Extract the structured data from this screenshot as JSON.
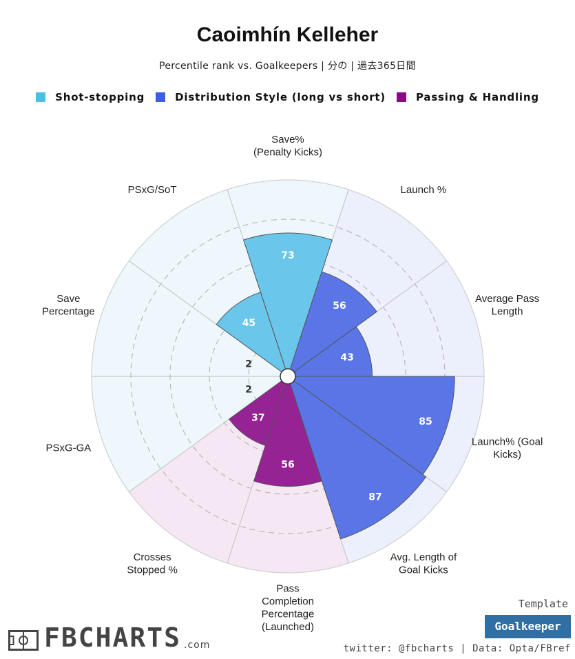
{
  "header": {
    "title": "Caoimhín Kelleher",
    "subtitle": "Percentile rank vs. Goalkeepers | 分の | 過去365日間"
  },
  "legend": [
    {
      "label": "Shot-stopping",
      "color": "#4dbde6"
    },
    {
      "label": "Distribution Style (long vs short)",
      "color": "#3c5fe0"
    },
    {
      "label": "Passing & Handling",
      "color": "#8a0a84"
    }
  ],
  "chart_data": {
    "type": "polar-bar",
    "title": "Caoimhín Kelleher",
    "rmax": 100,
    "grid_rings": [
      20,
      40,
      60,
      80
    ],
    "start_angle_deg": 90,
    "direction": "clockwise",
    "series": [
      {
        "name": "Shot-stopping",
        "color": "#6ac6ea",
        "bg": "#eef8fc"
      },
      {
        "name": "Distribution Style (long vs short)",
        "color": "#5a76e6",
        "bg": "#eceffc"
      },
      {
        "name": "Passing & Handling",
        "color": "#962394",
        "bg": "#f5e8f4"
      }
    ],
    "categories": [
      {
        "label": "Save%\n(Penalty Kicks)",
        "value": 73,
        "value_label": "73",
        "group": 0
      },
      {
        "label": "Launch %",
        "value": 56,
        "value_label": "56",
        "group": 1
      },
      {
        "label": "Average Pass\nLength",
        "value": 43,
        "value_label": "43",
        "group": 1
      },
      {
        "label": "Launch% (Goal\nKicks)",
        "value": 85,
        "value_label": "85",
        "group": 1
      },
      {
        "label": "Avg. Length of\nGoal Kicks",
        "value": 87,
        "value_label": "87",
        "group": 1
      },
      {
        "label": "Pass\nCompletion\nPercentage\n(Launched)",
        "value": 56,
        "value_label": "56",
        "group": 2
      },
      {
        "label": "Crosses\nStopped %",
        "value": 37,
        "value_label": "37",
        "group": 2
      },
      {
        "label": "PSxG-GA",
        "value": 2,
        "value_label": "2",
        "group": 0
      },
      {
        "label": "Save\nPercentage",
        "value": 2,
        "value_label": "2",
        "group": 0
      },
      {
        "label": "PSxG/SoT",
        "value": 45,
        "value_label": "45",
        "group": 0
      }
    ]
  },
  "footer": {
    "brand": "FBCHARTS",
    "brand_suffix": ".com",
    "template_label": "Template",
    "template_value": "Goalkeeper",
    "credits": "twitter: @fbcharts | Data: Opta/FBref"
  }
}
